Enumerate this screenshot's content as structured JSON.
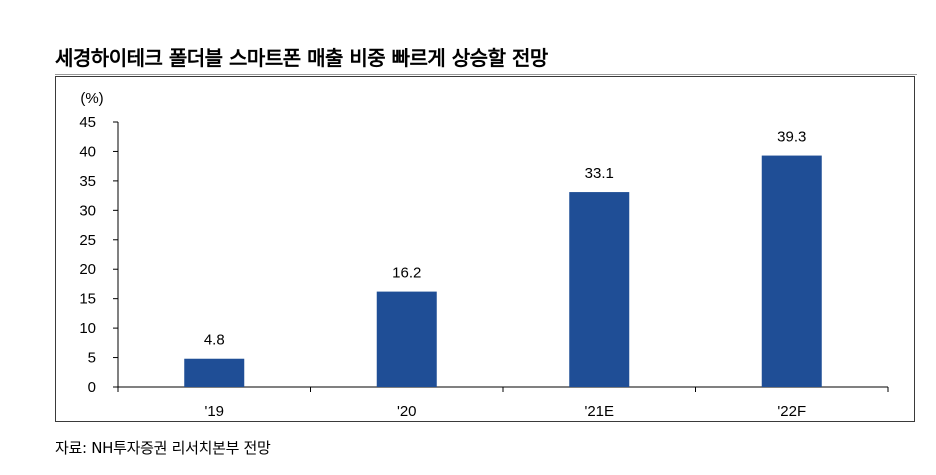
{
  "title": "세경하이테크 폴더블 스마트폰 매출 비중 빠르게 상승할 전망",
  "source": "자료: NH투자증권 리서치본부 전망",
  "chart_data": {
    "type": "bar",
    "title": "세경하이테크 폴더블 스마트폰 매출 비중 빠르게 상승할 전망",
    "unit_label": "(%)",
    "categories": [
      "'19",
      "'20",
      "'21E",
      "'22F"
    ],
    "values": [
      4.8,
      16.2,
      33.1,
      39.3
    ],
    "data_labels": [
      "4.8",
      "16.2",
      "33.1",
      "39.3"
    ],
    "ylim": [
      0,
      45
    ],
    "yticks": [
      0,
      5,
      10,
      15,
      20,
      25,
      30,
      35,
      40,
      45
    ],
    "bar_color": "#1f4e96",
    "grid": false,
    "legend": "none"
  }
}
